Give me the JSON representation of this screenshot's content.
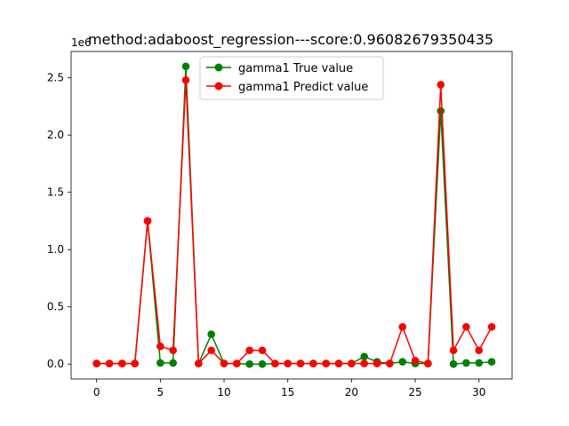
{
  "chart_data": {
    "type": "line",
    "title": "method:adaboost_regression---score:0.96082679350435",
    "offset_label": "1e6",
    "xlabel": "",
    "ylabel": "",
    "xlim": [
      -2,
      32.6
    ],
    "ylim": [
      -0.13,
      2.73
    ],
    "x_ticks": [
      0,
      5,
      10,
      15,
      20,
      25,
      30
    ],
    "y_ticks": [
      0.0,
      0.5,
      1.0,
      1.5,
      2.0,
      2.5
    ],
    "y_tick_labels": [
      "0.0",
      "0.5",
      "1.0",
      "1.5",
      "2.0",
      "2.5"
    ],
    "grid": false,
    "legend_position": "top-center",
    "x": [
      0,
      1,
      2,
      3,
      4,
      5,
      6,
      7,
      8,
      9,
      10,
      11,
      12,
      13,
      14,
      15,
      16,
      17,
      18,
      19,
      20,
      21,
      22,
      23,
      24,
      25,
      26,
      27,
      28,
      29,
      30,
      31
    ],
    "series": [
      {
        "name": "gamma1 True value",
        "color": "#008000",
        "values": [
          0.005,
          0.005,
          0.005,
          0.005,
          1.25,
          0.01,
          0.01,
          2.6,
          0.005,
          0.26,
          0.005,
          0.005,
          0.0,
          0.0,
          0.005,
          0.005,
          0.005,
          0.005,
          0.005,
          0.005,
          0.005,
          0.065,
          0.02,
          0.005,
          0.02,
          0.005,
          0.005,
          2.21,
          0.0,
          0.01,
          0.01,
          0.02
        ]
      },
      {
        "name": "gamma1 Predict value",
        "color": "#ff0000",
        "values": [
          0.005,
          0.005,
          0.005,
          0.005,
          1.25,
          0.155,
          0.12,
          2.48,
          0.005,
          0.12,
          0.005,
          0.005,
          0.12,
          0.12,
          0.005,
          0.005,
          0.005,
          0.005,
          0.005,
          0.005,
          0.005,
          0.005,
          0.005,
          0.005,
          0.325,
          0.03,
          0.005,
          2.44,
          0.12,
          0.325,
          0.12,
          0.325
        ]
      }
    ]
  }
}
